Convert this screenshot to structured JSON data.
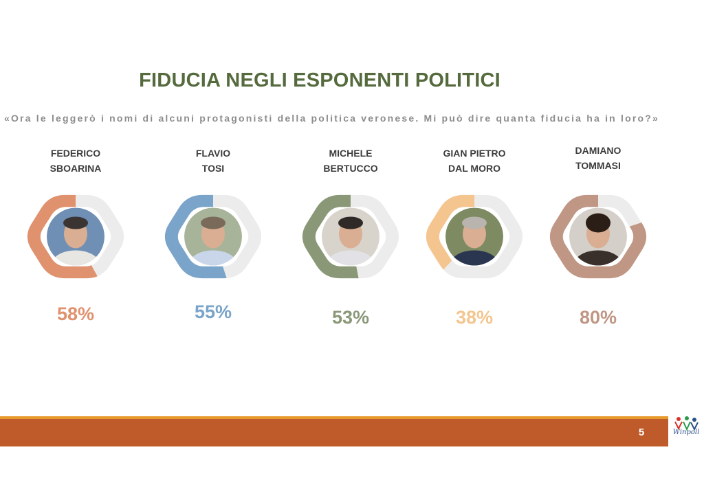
{
  "header": {
    "title": "FIDUCIA NEGLI ESPONENTI POLITICI",
    "subtitle": "«Ora le leggerò i nomi di alcuni protagonisti della politica veronese. Mi può dire quanta fiducia ha in loro?»"
  },
  "chart_data": {
    "type": "donut",
    "unit": "%",
    "categories": [
      "FEDERICO SBOARINA",
      "FLAVIO TOSI",
      "MICHELE BERTUCCO",
      "GIAN PIETRO DAL MORO",
      "DAMIANO TOMMASI"
    ],
    "values": [
      58,
      55,
      53,
      38,
      80
    ],
    "items": [
      {
        "name_lines": [
          "FEDERICO",
          "SBOARINA"
        ],
        "value": 58,
        "label": "58%",
        "color": "#e0916d"
      },
      {
        "name_lines": [
          "FLAVIO",
          "TOSI"
        ],
        "value": 55,
        "label": "55%",
        "color": "#7aa4c9"
      },
      {
        "name_lines": [
          "MICHELE",
          "BERTUCCO"
        ],
        "value": 53,
        "label": "53%",
        "color": "#8a9878"
      },
      {
        "name_lines": [
          "GIAN PIETRO",
          "DAL MORO"
        ],
        "value": 38,
        "label": "38%",
        "color": "#f4c58e"
      },
      {
        "name_lines": [
          "DAMIANO",
          "TOMMASI"
        ],
        "value": 80,
        "label": "80%",
        "color": "#c09684"
      }
    ],
    "track_color": "#ececec"
  },
  "footer": {
    "page_number": "5",
    "logo_text": "Winpoll"
  }
}
